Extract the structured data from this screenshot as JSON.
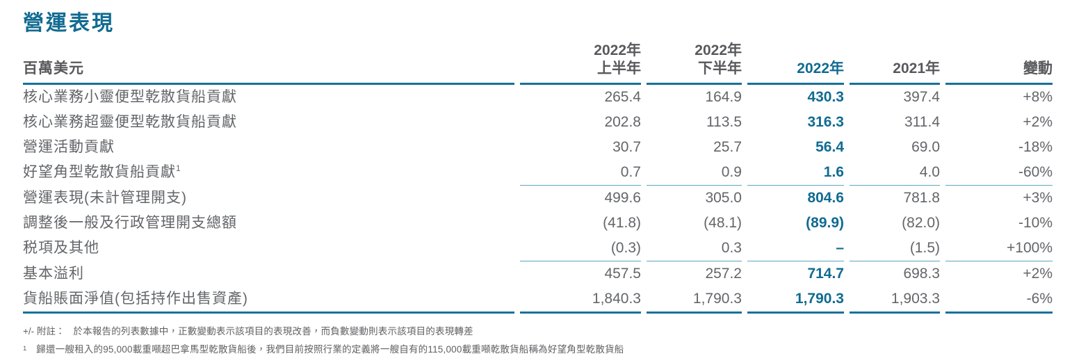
{
  "page": {
    "title": "營運表現"
  },
  "colors": {
    "accent_teal": "#116b91",
    "rule_strong": "#16719a",
    "rule_light": "#5da5c0",
    "text_gray": "#636569"
  },
  "table": {
    "unit_label": "百萬美元",
    "columns": [
      {
        "line1": "2022年",
        "line2": "上半年"
      },
      {
        "line1": "2022年",
        "line2": "下半年"
      },
      {
        "label": "2022年",
        "highlight": true
      },
      {
        "label": "2021年"
      },
      {
        "label": "變動"
      }
    ],
    "rows": [
      {
        "label": "核心業務小靈便型乾散貨船貢獻",
        "values": [
          "265.4",
          "164.9",
          "430.3",
          "397.4",
          "+8%"
        ]
      },
      {
        "label": "核心業務超靈便型乾散貨船貢獻",
        "values": [
          "202.8",
          "113.5",
          "316.3",
          "311.4",
          "+2%"
        ]
      },
      {
        "label": "營運活動貢獻",
        "values": [
          "30.7",
          "25.7",
          "56.4",
          "69.0",
          "-18%"
        ]
      },
      {
        "label": "好望角型乾散貨船貢獻",
        "sup": "1",
        "values": [
          "0.7",
          "0.9",
          "1.6",
          "4.0",
          "-60%"
        ]
      },
      {
        "label": "營運表現(未計管理開支)",
        "values": [
          "499.6",
          "305.0",
          "804.6",
          "781.8",
          "+3%"
        ]
      },
      {
        "label": "調整後一般及行政管理開支總額",
        "values": [
          "(41.8)",
          "(48.1)",
          "(89.9)",
          "(82.0)",
          "-10%"
        ]
      },
      {
        "label": "税項及其他",
        "values": [
          "(0.3)",
          "0.3",
          "–",
          "(1.5)",
          "+100%"
        ]
      },
      {
        "label": "基本溢利",
        "values": [
          "457.5",
          "257.2",
          "714.7",
          "698.3",
          "+2%"
        ]
      },
      {
        "label": "貨船賬面淨值(包括持作出售資產)",
        "values": [
          "1,840.3",
          "1,790.3",
          "1,790.3",
          "1,903.3",
          "-6%"
        ]
      }
    ]
  },
  "footnotes": [
    {
      "marker": "+/- 附註：",
      "text": "於本報告的列表數據中，正數變動表示該項目的表現改善，而負數變動則表示該項目的表現轉差"
    },
    {
      "marker": "1",
      "text": "歸還一艘租入的95,000載重噸超巴拿馬型乾散貨船後，我們目前按照行業的定義將一艘自有的115,000載重噸乾散貨船稱為好望角型乾散貨船"
    }
  ]
}
